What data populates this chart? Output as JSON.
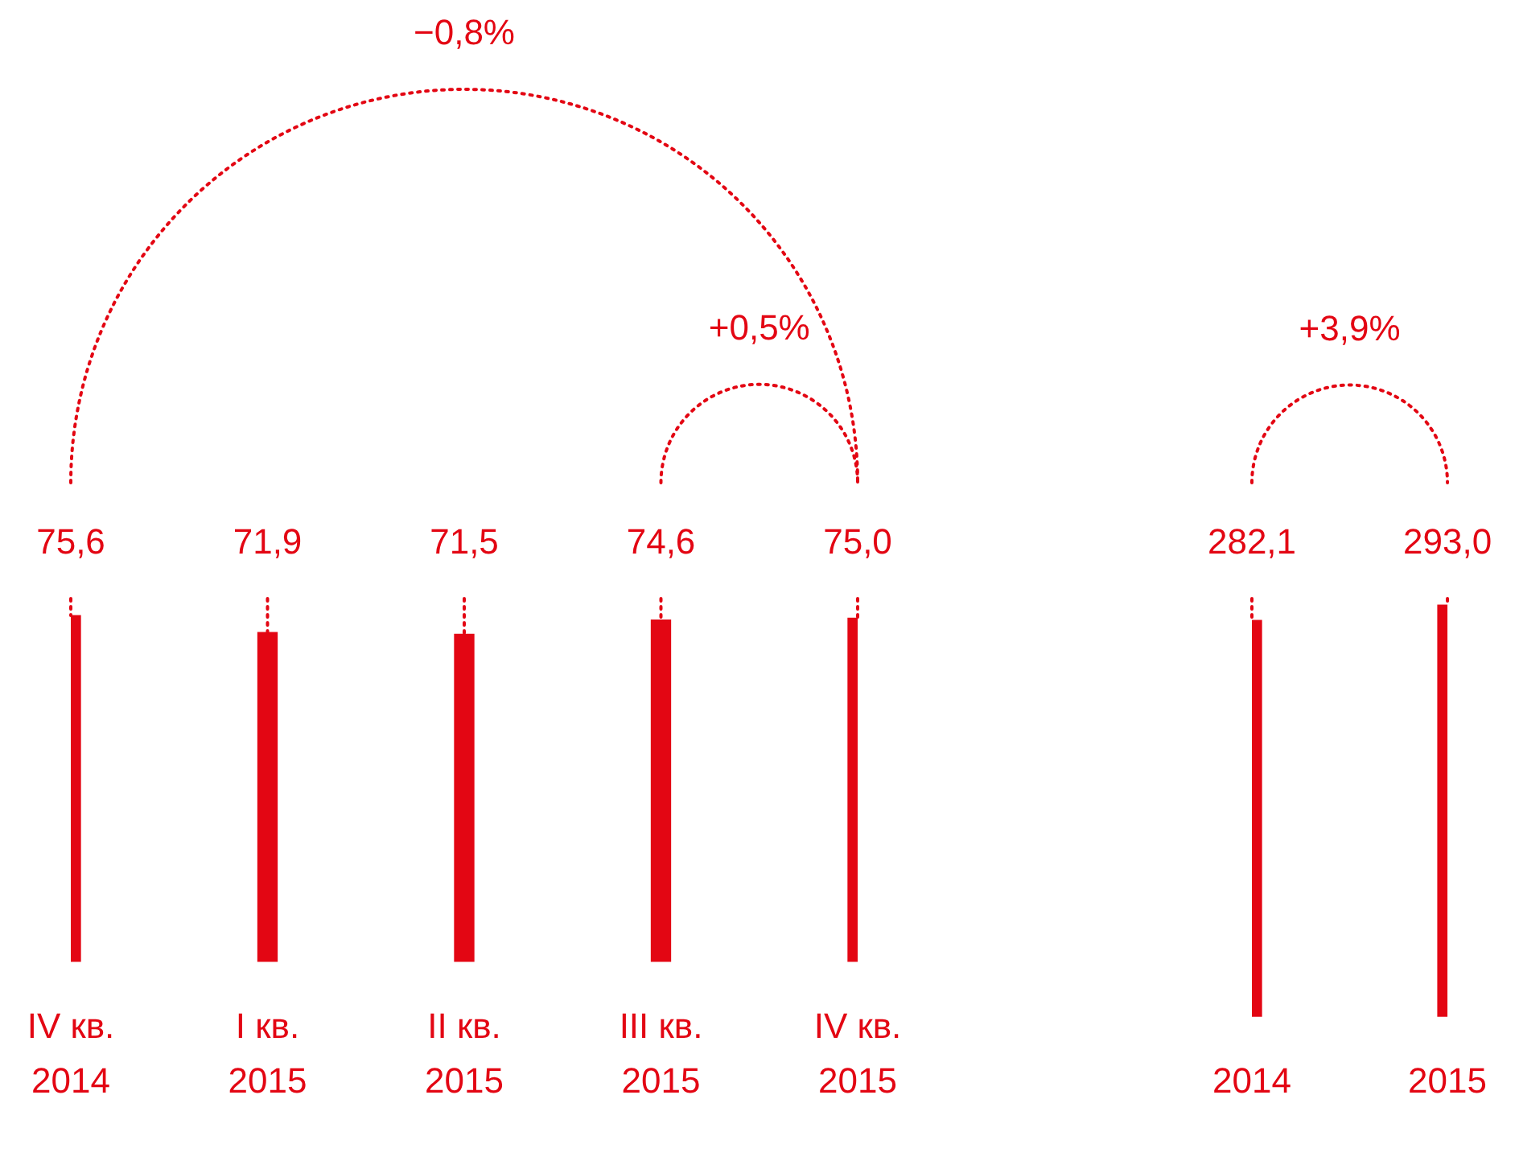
{
  "chart_data": [
    {
      "type": "bar",
      "categories": [
        "IV кв. 2014",
        "I кв. 2015",
        "II кв. 2015",
        "III кв. 2015",
        "IV кв. 2015"
      ],
      "values": [
        75.6,
        71.9,
        71.5,
        74.6,
        75.0
      ],
      "value_labels": [
        "75,6",
        "71,9",
        "71,5",
        "74,6",
        "75,0"
      ],
      "color": "#e30613",
      "tick_labels": "x",
      "annotations": [
        "−0,8%",
        "+0,5%"
      ]
    },
    {
      "type": "bar",
      "categories": [
        "2014",
        "2015"
      ],
      "values": [
        282.1,
        293.0
      ],
      "value_labels": [
        "282,1",
        "293,0"
      ],
      "color": "#e30613",
      "tick_labels": "x",
      "annotations": [
        "+3,9%"
      ]
    }
  ]
}
